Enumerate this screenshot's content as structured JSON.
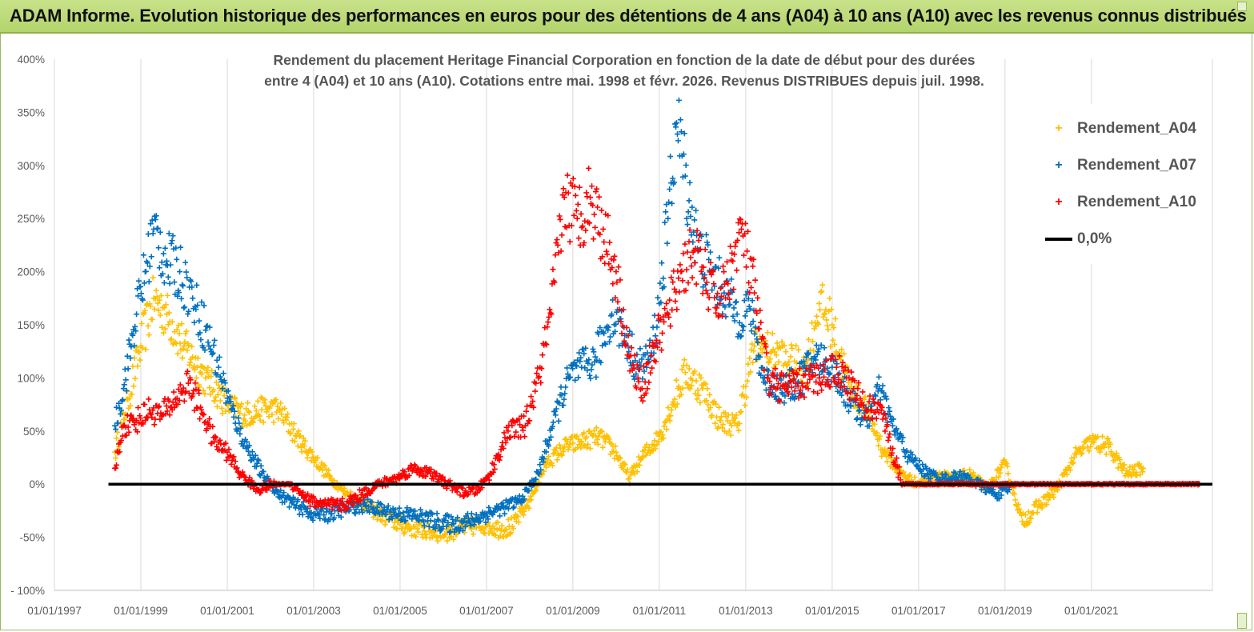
{
  "header": {
    "title": "ADAM Informe. Evolution historique des performances en euros pour des détentions de 4 ans (A04) à 10 ans (A10) avec les revenus connus distribués"
  },
  "colors": {
    "header_bg": "#b9d872",
    "a04": "#ffc000",
    "a07": "#0070c0",
    "a10": "#ff0000",
    "zero_line": "#000000",
    "grid": "#d9d9d9",
    "text": "#595959"
  },
  "chart_data": {
    "type": "scatter",
    "title_line1": "Rendement du placement Heritage Financial Corporation en fonction de la date de début pour des durées",
    "title_line2": "entre 4 (A04) et 10 ans (A10).  Cotations entre mai. 1998 et févr. 2026. Revenus DISTRIBUES depuis juil. 1998.",
    "xlabel": "",
    "ylabel": "",
    "xlim": [
      1997.0,
      2023.8
    ],
    "ylim": [
      -100,
      400
    ],
    "x_ticks": [
      1997,
      1999,
      2001,
      2003,
      2005,
      2007,
      2009,
      2011,
      2013,
      2015,
      2017,
      2019,
      2021
    ],
    "x_tick_labels": [
      "01/01/1997",
      "01/01/1999",
      "01/01/2001",
      "01/01/2003",
      "01/01/2005",
      "01/01/2007",
      "01/01/2009",
      "01/01/2011",
      "01/01/2013",
      "01/01/2015",
      "01/01/2017",
      "01/01/2019",
      "01/01/2021"
    ],
    "y_ticks": [
      -100,
      -50,
      0,
      50,
      100,
      150,
      200,
      250,
      300,
      350,
      400
    ],
    "y_tick_labels": [
      "- 100%",
      "-50%",
      "0%",
      "50%",
      "100%",
      "150%",
      "200%",
      "250%",
      "300%",
      "350%",
      "400%"
    ],
    "grid": "vertical",
    "legend_position": "top-right",
    "series": [
      {
        "name": "Rendement_A04",
        "color": "#ffc000",
        "marker": "+",
        "x": [
          1998.4,
          1998.7,
          1999.0,
          1999.3,
          1999.6,
          2000.0,
          2000.5,
          2001.0,
          2001.4,
          2001.8,
          2002.2,
          2002.6,
          2003.0,
          2003.4,
          2003.8,
          2004.2,
          2004.6,
          2005.0,
          2005.4,
          2005.8,
          2006.2,
          2006.6,
          2007.0,
          2007.3,
          2007.6,
          2008.0,
          2008.4,
          2008.8,
          2009.2,
          2009.6,
          2010.0,
          2010.3,
          2010.6,
          2011.0,
          2011.3,
          2011.6,
          2012.0,
          2012.4,
          2012.8,
          2013.2,
          2013.6,
          2014.0,
          2014.4,
          2014.7,
          2015.0,
          2015.4,
          2015.8,
          2016.2,
          2016.6,
          2017.0,
          2017.4,
          2017.8,
          2018.2,
          2018.6,
          2019.0,
          2019.4,
          2019.8,
          2020.2,
          2020.6,
          2021.0,
          2021.4,
          2021.8,
          2022.2
        ],
        "y": [
          30,
          80,
          130,
          175,
          160,
          130,
          100,
          75,
          65,
          70,
          70,
          45,
          25,
          5,
          -10,
          -20,
          -30,
          -38,
          -42,
          -45,
          -44,
          -40,
          -38,
          -42,
          -40,
          -15,
          20,
          35,
          40,
          45,
          30,
          5,
          25,
          45,
          75,
          105,
          90,
          60,
          55,
          130,
          125,
          115,
          110,
          170,
          150,
          90,
          70,
          30,
          10,
          0,
          10,
          5,
          10,
          -5,
          20,
          -35,
          -20,
          -5,
          25,
          40,
          35,
          10,
          15
        ]
      },
      {
        "name": "Rendement_A07",
        "color": "#0070c0",
        "marker": "+",
        "x": [
          1998.4,
          1998.6,
          1998.9,
          1999.1,
          1999.3,
          1999.6,
          1999.9,
          2000.2,
          2000.5,
          2000.8,
          2001.1,
          2001.4,
          2001.8,
          2002.2,
          2002.6,
          2003.0,
          2003.4,
          2003.8,
          2004.2,
          2004.6,
          2005.0,
          2005.4,
          2005.8,
          2006.2,
          2006.6,
          2007.0,
          2007.4,
          2007.8,
          2008.2,
          2008.6,
          2008.9,
          2009.2,
          2009.5,
          2009.9,
          2010.2,
          2010.5,
          2010.8,
          2011.0,
          2011.2,
          2011.4,
          2011.6,
          2011.9,
          2012.2,
          2012.5,
          2012.8,
          2013.1,
          2013.4,
          2013.8,
          2014.2,
          2014.6,
          2015.0,
          2015.4,
          2015.8,
          2016.1,
          2016.4,
          2016.8,
          2017.2,
          2017.6,
          2018.0,
          2018.4,
          2018.8,
          2019.1
        ],
        "y": [
          55,
          90,
          160,
          200,
          240,
          210,
          200,
          175,
          145,
          110,
          70,
          40,
          10,
          -10,
          -20,
          -28,
          -28,
          -22,
          -20,
          -25,
          -28,
          -30,
          -35,
          -38,
          -35,
          -28,
          -22,
          -15,
          10,
          65,
          100,
          110,
          115,
          160,
          140,
          110,
          120,
          170,
          250,
          340,
          290,
          220,
          200,
          180,
          160,
          165,
          100,
          90,
          95,
          120,
          110,
          80,
          60,
          90,
          55,
          25,
          10,
          5,
          8,
          0,
          -10,
          -5
        ]
      },
      {
        "name": "Rendement_A10",
        "color": "#ff0000",
        "marker": "+",
        "x": [
          1998.4,
          1998.6,
          1998.9,
          1999.2,
          1999.5,
          1999.8,
          2000.1,
          2000.4,
          2000.7,
          2001.0,
          2001.3,
          2001.7,
          2002.1,
          2002.5,
          2002.9,
          2003.3,
          2003.7,
          2004.1,
          2004.5,
          2004.9,
          2005.3,
          2005.7,
          2006.1,
          2006.5,
          2006.8,
          2007.1,
          2007.5,
          2007.9,
          2008.2,
          2008.5,
          2008.8,
          2009.1,
          2009.4,
          2009.7,
          2010.0,
          2010.3,
          2010.6,
          2010.9,
          2011.2,
          2011.5,
          2011.8,
          2012.1,
          2012.4,
          2012.7,
          2012.9,
          2013.2,
          2013.5,
          2013.9,
          2014.3,
          2014.7,
          2015.1,
          2015.5,
          2015.8,
          2016.1,
          2016.6,
          2017.5,
          2018.5,
          2019.5,
          2020.5,
          2021.5,
          2022.5,
          2023.5
        ],
        "y": [
          15,
          55,
          60,
          70,
          65,
          80,
          95,
          70,
          40,
          30,
          10,
          -5,
          0,
          0,
          -15,
          -20,
          -20,
          -10,
          0,
          5,
          15,
          10,
          0,
          -8,
          -5,
          10,
          50,
          55,
          100,
          160,
          270,
          250,
          270,
          240,
          200,
          120,
          90,
          130,
          160,
          200,
          220,
          190,
          170,
          210,
          240,
          180,
          100,
          90,
          95,
          100,
          110,
          90,
          70,
          75,
          0,
          0,
          0,
          0,
          0,
          0,
          0,
          0
        ]
      },
      {
        "name": "0,0%",
        "color": "#000000",
        "marker": "line",
        "x": [
          1998.25,
          2023.8
        ],
        "y": [
          0,
          0
        ]
      }
    ]
  }
}
